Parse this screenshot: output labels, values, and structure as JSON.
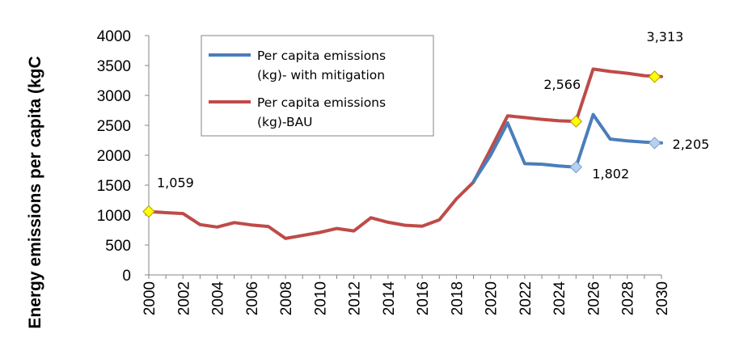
{
  "chart_data": {
    "type": "line",
    "title": "",
    "xlabel": "",
    "ylabel": "Energy emissions per capita (kgC",
    "ylim": [
      0,
      4000
    ],
    "y_ticks": [
      "0",
      "500",
      "1000",
      "1500",
      "2000",
      "2500",
      "3000",
      "3500",
      "4000"
    ],
    "x_ticks": [
      "2000",
      "2002",
      "2004",
      "2006",
      "2008",
      "2010",
      "2012",
      "2014",
      "2016",
      "2018",
      "2020",
      "2022",
      "2024",
      "2026",
      "2028",
      "2030"
    ],
    "grid": false,
    "legend_position": "top-left",
    "series": [
      {
        "name": "Per capita emissions (kg)- with mitigation",
        "name_lines": [
          "Per capita emissions",
          "(kg)- with mitigation"
        ],
        "color": "#4a7ebb",
        "x": [
          2019,
          2020,
          2021,
          2022,
          2023,
          2024,
          2025,
          2026,
          2027,
          2028,
          2029,
          2030
        ],
        "y": [
          1560,
          2000,
          2540,
          1860,
          1850,
          1820,
          1802,
          2680,
          2270,
          2240,
          2220,
          2205
        ]
      },
      {
        "name": "Per capita emissions (kg)-BAU",
        "name_lines": [
          "Per capita emissions",
          "(kg)-BAU"
        ],
        "color": "#be4b48",
        "x": [
          2000,
          2001,
          2002,
          2003,
          2004,
          2005,
          2006,
          2007,
          2008,
          2009,
          2010,
          2011,
          2012,
          2013,
          2014,
          2015,
          2016,
          2017,
          2018,
          2019,
          2020,
          2021,
          2022,
          2023,
          2024,
          2025,
          2026,
          2027,
          2028,
          2029,
          2030
        ],
        "y": [
          1059,
          1040,
          1025,
          840,
          800,
          875,
          835,
          810,
          610,
          660,
          710,
          775,
          735,
          955,
          880,
          830,
          815,
          920,
          1270,
          1550,
          2100,
          2660,
          2630,
          2600,
          2575,
          2566,
          3440,
          3400,
          3370,
          3330,
          3313
        ]
      }
    ],
    "annotations": [
      {
        "x": 2000,
        "y": 1059,
        "label": "1,059",
        "marker": "yellow-diamond"
      },
      {
        "x": 2025,
        "y": 2566,
        "label": "2,566",
        "marker": "yellow-diamond"
      },
      {
        "x": 2030,
        "y": 3313,
        "label": "3,313",
        "marker": "yellow-diamond"
      },
      {
        "x": 2025,
        "y": 1802,
        "label": "1,802",
        "marker": "blue-diamond"
      },
      {
        "x": 2030,
        "y": 2205,
        "label": "2,205",
        "marker": "blue-diamond"
      }
    ]
  }
}
